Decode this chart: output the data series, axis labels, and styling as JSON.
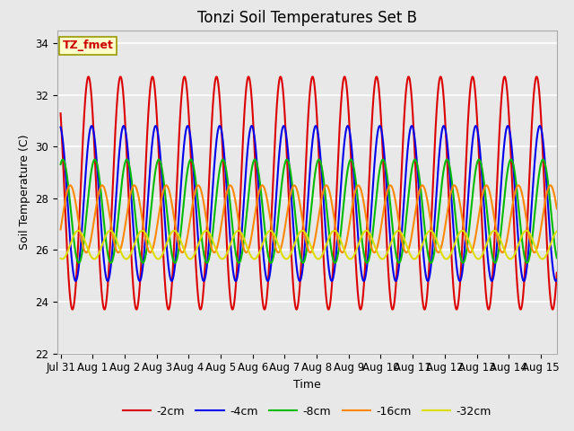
{
  "title": "Tonzi Soil Temperatures Set B",
  "xlabel": "Time",
  "ylabel": "Soil Temperature (C)",
  "ylim": [
    22,
    34.5
  ],
  "ylim_display": [
    22,
    34
  ],
  "xlim_days": [
    -0.1,
    15.5
  ],
  "yticks": [
    22,
    24,
    26,
    28,
    30,
    32,
    34
  ],
  "xtick_labels": [
    "Jul 31",
    "Aug 1",
    "Aug 2",
    "Aug 3",
    "Aug 4",
    "Aug 5",
    "Aug 6",
    "Aug 7",
    "Aug 8",
    "Aug 9",
    "Aug 10",
    "Aug 11",
    "Aug 12",
    "Aug 13",
    "Aug 14",
    "Aug 15"
  ],
  "xtick_positions": [
    0,
    1,
    2,
    3,
    4,
    5,
    6,
    7,
    8,
    9,
    10,
    11,
    12,
    13,
    14,
    15
  ],
  "annotation_text": "TZ_fmet",
  "annotation_color": "#cc0000",
  "annotation_bg": "#ffffcc",
  "annotation_border": "#999900",
  "series": [
    {
      "label": "-2cm",
      "color": "#dd0000",
      "mean": 28.2,
      "amplitude": 4.5,
      "phase": 0.62,
      "lw": 1.5
    },
    {
      "label": "-4cm",
      "color": "#0000ee",
      "mean": 27.8,
      "amplitude": 3.0,
      "phase": 0.72,
      "lw": 1.5
    },
    {
      "label": "-8cm",
      "color": "#00bb00",
      "mean": 27.5,
      "amplitude": 2.0,
      "phase": 0.82,
      "lw": 1.5
    },
    {
      "label": "-16cm",
      "color": "#ff8800",
      "mean": 27.2,
      "amplitude": 1.3,
      "phase": 0.05,
      "lw": 1.5
    },
    {
      "label": "-32cm",
      "color": "#dddd00",
      "mean": 26.2,
      "amplitude": 0.55,
      "phase": 0.3,
      "lw": 1.5
    }
  ],
  "bg_color": "#e8e8e8",
  "grid_color": "#ffffff",
  "title_fontsize": 12,
  "axis_label_fontsize": 9,
  "tick_fontsize": 8.5
}
